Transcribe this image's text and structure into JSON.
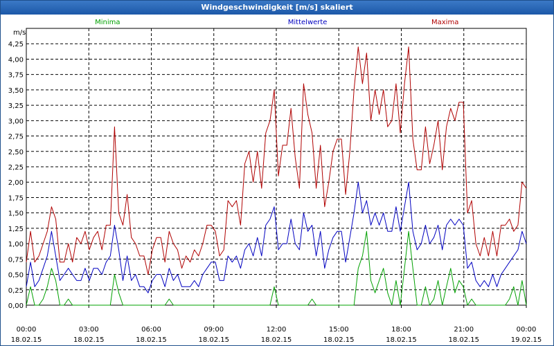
{
  "window": {
    "title": "Windgeschwindigkeit [m/s] skaliert"
  },
  "colors": {
    "minima": "#00a000",
    "mittel": "#0000c0",
    "maxima": "#b00000",
    "grid": "#000000",
    "title_bar": "#2a66b5"
  },
  "chart_data": {
    "type": "line",
    "title": "Windgeschwindigkeit [m/s] skaliert",
    "ylabel": "m/s",
    "ylim": [
      0,
      4.5
    ],
    "yticks": [
      "0,00",
      "0,25",
      "0,50",
      "0,75",
      "1,00",
      "1,25",
      "1,50",
      "1,75",
      "2,00",
      "2,25",
      "2,50",
      "2,75",
      "3,00",
      "3,25",
      "3,50",
      "3,75",
      "4,00",
      "4,25"
    ],
    "xlim_hours": [
      0,
      24
    ],
    "xticks": [
      {
        "time": "00:00",
        "date": "18.02.15"
      },
      {
        "time": "03:00",
        "date": "18.02.15"
      },
      {
        "time": "06:00",
        "date": "18.02.15"
      },
      {
        "time": "09:00",
        "date": "18.02.15"
      },
      {
        "time": "12:00",
        "date": "18.02.15"
      },
      {
        "time": "15:00",
        "date": "18.02.15"
      },
      {
        "time": "18:00",
        "date": "18.02.15"
      },
      {
        "time": "21:00",
        "date": "18.02.15"
      },
      {
        "time": "00:00",
        "date": "19.02.15"
      }
    ],
    "legend": [
      "Minima",
      "Mittelwerte",
      "Maxima"
    ],
    "series": [
      {
        "name": "Maxima",
        "color": "#b00000",
        "values": [
          0.7,
          1.2,
          0.7,
          0.8,
          1.0,
          1.2,
          1.6,
          1.4,
          0.7,
          0.7,
          1.0,
          0.7,
          1.1,
          1.0,
          1.2,
          0.9,
          1.1,
          1.2,
          0.9,
          1.3,
          1.3,
          2.9,
          1.5,
          1.3,
          1.8,
          1.1,
          1.0,
          0.8,
          0.8,
          0.5,
          0.9,
          1.1,
          1.1,
          0.7,
          1.2,
          1.0,
          0.9,
          0.6,
          0.8,
          0.7,
          0.9,
          0.8,
          1.0,
          1.3,
          1.3,
          1.2,
          0.8,
          0.9,
          1.7,
          1.6,
          1.7,
          1.3,
          2.3,
          2.5,
          2.0,
          2.5,
          1.9,
          2.8,
          3.0,
          3.5,
          2.1,
          2.6,
          2.6,
          3.2,
          2.4,
          1.9,
          3.6,
          3.1,
          2.8,
          1.9,
          2.6,
          1.6,
          2.0,
          2.5,
          2.7,
          2.7,
          1.8,
          2.5,
          3.5,
          4.2,
          3.6,
          4.1,
          3.0,
          3.5,
          3.1,
          3.5,
          2.9,
          3.0,
          3.6,
          2.8,
          3.6,
          4.2,
          2.7,
          2.2,
          2.2,
          2.9,
          2.3,
          2.6,
          3.0,
          2.2,
          2.9,
          3.2,
          3.0,
          3.3,
          3.3,
          1.5,
          1.7,
          1.0,
          0.8,
          1.1,
          0.8,
          1.2,
          0.8,
          1.3,
          1.3,
          1.4,
          1.2,
          1.3,
          2.0,
          1.9
        ]
      },
      {
        "name": "Mittelwerte",
        "color": "#0000c0",
        "values": [
          0.3,
          0.7,
          0.3,
          0.4,
          0.6,
          0.8,
          1.2,
          0.8,
          0.4,
          0.5,
          0.6,
          0.5,
          0.4,
          0.4,
          0.6,
          0.4,
          0.6,
          0.6,
          0.5,
          0.7,
          0.8,
          1.3,
          0.9,
          0.4,
          0.8,
          0.4,
          0.5,
          0.3,
          0.3,
          0.2,
          0.4,
          0.5,
          0.5,
          0.3,
          0.6,
          0.4,
          0.5,
          0.3,
          0.3,
          0.3,
          0.4,
          0.3,
          0.5,
          0.6,
          0.7,
          0.7,
          0.4,
          0.4,
          0.8,
          0.7,
          0.8,
          0.6,
          0.9,
          1.0,
          0.8,
          1.1,
          0.8,
          1.3,
          1.4,
          1.6,
          0.9,
          1.0,
          1.0,
          1.4,
          1.0,
          0.9,
          1.5,
          1.2,
          1.3,
          0.8,
          1.2,
          0.6,
          0.9,
          1.1,
          1.2,
          1.2,
          0.7,
          1.1,
          1.5,
          2.0,
          1.5,
          1.7,
          1.3,
          1.5,
          1.3,
          1.5,
          1.2,
          1.2,
          1.6,
          1.2,
          1.6,
          2.0,
          1.2,
          0.9,
          1.0,
          1.3,
          1.0,
          1.1,
          1.3,
          0.9,
          1.3,
          1.4,
          1.3,
          1.4,
          1.3,
          0.6,
          0.7,
          0.4,
          0.3,
          0.4,
          0.3,
          0.5,
          0.3,
          0.5,
          0.6,
          0.7,
          0.8,
          0.9,
          1.2,
          1.0
        ]
      },
      {
        "name": "Minima",
        "color": "#00a000",
        "values": [
          0.0,
          0.3,
          0.0,
          0.0,
          0.1,
          0.3,
          0.6,
          0.4,
          0.0,
          0.0,
          0.1,
          0.0,
          0.0,
          0.0,
          0.0,
          0.0,
          0.0,
          0.0,
          0.0,
          0.0,
          0.0,
          0.5,
          0.2,
          0.0,
          0.0,
          0.0,
          0.0,
          0.0,
          0.0,
          0.0,
          0.0,
          0.0,
          0.0,
          0.0,
          0.1,
          0.0,
          0.0,
          0.0,
          0.0,
          0.0,
          0.0,
          0.0,
          0.0,
          0.0,
          0.0,
          0.0,
          0.0,
          0.0,
          0.0,
          0.0,
          0.0,
          0.0,
          0.0,
          0.0,
          0.0,
          0.0,
          0.0,
          0.0,
          0.0,
          0.3,
          0.0,
          0.0,
          0.0,
          0.0,
          0.0,
          0.0,
          0.0,
          0.0,
          0.1,
          0.0,
          0.0,
          0.0,
          0.0,
          0.0,
          0.0,
          0.0,
          0.0,
          0.0,
          0.0,
          0.6,
          0.8,
          1.2,
          0.4,
          0.2,
          0.4,
          0.6,
          0.2,
          0.0,
          0.4,
          0.0,
          0.6,
          1.2,
          0.6,
          0.0,
          0.0,
          0.3,
          0.0,
          0.1,
          0.4,
          0.0,
          0.3,
          0.6,
          0.2,
          0.4,
          0.3,
          0.0,
          0.1,
          0.0,
          0.0,
          0.0,
          0.0,
          0.0,
          0.0,
          0.0,
          0.0,
          0.1,
          0.3,
          0.0,
          0.4,
          0.0
        ]
      }
    ]
  }
}
